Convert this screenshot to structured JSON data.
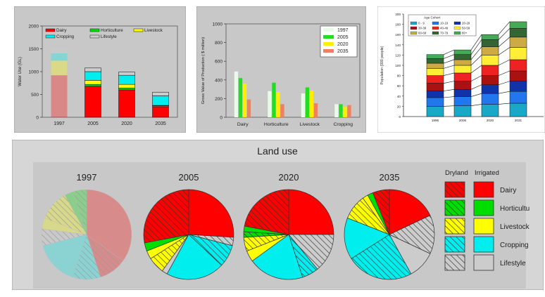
{
  "colors": {
    "dairy": "#ff0000",
    "horticulture": "#00dd00",
    "livestock": "#ffff00",
    "cropping": "#00eeee",
    "lifestyle": "#cccccc",
    "panel_bg": "#c8c8c8",
    "y1997": "#e8fbe8",
    "y2005": "#22dd22",
    "y2020": "#ffee00",
    "y2035": "#f08060"
  },
  "chart_data": [
    {
      "type": "bar",
      "stacked": true,
      "categories": [
        "1997",
        "2005",
        "2020",
        "2035"
      ],
      "ylabel": "Water Use (GL)",
      "ylim": [
        0,
        2000
      ],
      "yticks": [
        "0",
        "500",
        "1000",
        "1500",
        "2000"
      ],
      "legend_position": "top",
      "series": [
        {
          "name": "Dairy",
          "key": "dairy",
          "values": [
            920,
            680,
            600,
            230
          ]
        },
        {
          "name": "Horticulture",
          "key": "horticulture",
          "values": [
            0,
            40,
            40,
            20
          ]
        },
        {
          "name": "Livestock",
          "key": "livestock",
          "values": [
            320,
            90,
            80,
            10
          ]
        },
        {
          "name": "Cropping",
          "key": "cropping",
          "values": [
            160,
            190,
            200,
            210
          ]
        },
        {
          "name": "Lifestyle",
          "key": "lifestyle",
          "values": [
            100,
            80,
            70,
            80
          ]
        }
      ]
    },
    {
      "type": "bar",
      "categories": [
        "Dairy",
        "Horticulture",
        "Livestock",
        "Cropping"
      ],
      "ylabel": "Gross Value of Production ( $ million)",
      "ylim": [
        0,
        1000
      ],
      "yticks": [
        "0",
        "200",
        "400",
        "600",
        "800",
        "1000"
      ],
      "legend_position": "top-right",
      "series": [
        {
          "name": "1997",
          "key": "y1997",
          "values": [
            490,
            280,
            255,
            140
          ]
        },
        {
          "name": "2005",
          "key": "y2005",
          "values": [
            420,
            370,
            320,
            140
          ]
        },
        {
          "name": "2020",
          "key": "y2020",
          "values": [
            360,
            270,
            285,
            110
          ]
        },
        {
          "name": "2035",
          "key": "y2035",
          "values": [
            190,
            140,
            150,
            130
          ]
        }
      ]
    },
    {
      "type": "bar",
      "stacked": true,
      "categories": [
        "1996",
        "2006",
        "2020",
        "2031"
      ],
      "ylabel": "Population (000 people)",
      "ylim": [
        0,
        200
      ],
      "yticks": [
        "0",
        "20",
        "40",
        "60",
        "80",
        "100",
        "120",
        "140",
        "160",
        "180",
        "200"
      ],
      "legend_title": "Age Cohort",
      "series": [
        {
          "name": "0 - 9",
          "color": "#1aa8c8",
          "values": [
            20,
            21,
            24,
            26
          ]
        },
        {
          "name": "10-19",
          "color": "#2277ee",
          "values": [
            17,
            18,
            21,
            23
          ]
        },
        {
          "name": "20-29",
          "color": "#1133aa",
          "values": [
            13,
            14,
            17,
            20
          ]
        },
        {
          "name": "30-39",
          "color": "#aa1111",
          "values": [
            15,
            16,
            18,
            20
          ]
        },
        {
          "name": "40-49",
          "color": "#ee2222",
          "values": [
            15,
            16,
            20,
            22
          ]
        },
        {
          "name": "50-59",
          "color": "#ffee33",
          "values": [
            14,
            15,
            20,
            24
          ]
        },
        {
          "name": "60-69",
          "color": "#ccaa44",
          "values": [
            10,
            11,
            16,
            20
          ]
        },
        {
          "name": "70-79",
          "color": "#336633",
          "values": [
            9,
            10,
            14,
            17
          ]
        },
        {
          "name": "80+",
          "color": "#44aa55",
          "values": [
            8,
            9,
            10,
            13
          ]
        }
      ]
    },
    {
      "type": "pie",
      "title": "Land use",
      "pies": [
        {
          "label": "1997",
          "faded": true,
          "slices": [
            {
              "name": "Dairy",
              "kind": "irrigated",
              "value": 35
            },
            {
              "name": "Dairy",
              "kind": "dryland",
              "value": 10
            },
            {
              "name": "Cropping",
              "kind": "dryland",
              "value": 10
            },
            {
              "name": "Cropping",
              "kind": "irrigated",
              "value": 16
            },
            {
              "name": "Lifestyle",
              "kind": "dryland",
              "value": 6
            },
            {
              "name": "Livestock",
              "kind": "irrigated",
              "value": 4
            },
            {
              "name": "Livestock",
              "kind": "dryland",
              "value": 11
            },
            {
              "name": "Horticulture",
              "kind": "irrigated",
              "value": 3
            },
            {
              "name": "Horticulture",
              "kind": "dryland",
              "value": 5
            }
          ]
        },
        {
          "label": "2005",
          "slices": [
            {
              "name": "Dairy",
              "kind": "irrigated",
              "value": 26
            },
            {
              "name": "Lifestyle",
              "kind": "dryland",
              "value": 3
            },
            {
              "name": "Cropping",
              "kind": "dryland",
              "value": 8
            },
            {
              "name": "Cropping",
              "kind": "irrigated",
              "value": 21
            },
            {
              "name": "Lifestyle",
              "kind": "irrigated",
              "value": 2
            },
            {
              "name": "Livestock",
              "kind": "dryland",
              "value": 6
            },
            {
              "name": "Livestock",
              "kind": "irrigated",
              "value": 3
            },
            {
              "name": "Horticulture",
              "kind": "irrigated",
              "value": 3
            },
            {
              "name": "Dairy",
              "kind": "dryland",
              "value": 28
            }
          ]
        },
        {
          "label": "2020",
          "slices": [
            {
              "name": "Dairy",
              "kind": "irrigated",
              "value": 25
            },
            {
              "name": "Lifestyle",
              "kind": "dryland",
              "value": 14
            },
            {
              "name": "Cropping",
              "kind": "dryland",
              "value": 6
            },
            {
              "name": "Cropping",
              "kind": "irrigated",
              "value": 20
            },
            {
              "name": "Livestock",
              "kind": "irrigated",
              "value": 4
            },
            {
              "name": "Livestock",
              "kind": "dryland",
              "value": 5
            },
            {
              "name": "Horticulture",
              "kind": "dryland",
              "value": 2
            },
            {
              "name": "Horticulture",
              "kind": "irrigated",
              "value": 2
            },
            {
              "name": "Dairy",
              "kind": "dryland",
              "value": 22
            }
          ]
        },
        {
          "label": "2035",
          "slices": [
            {
              "name": "Dairy",
              "kind": "irrigated",
              "value": 18
            },
            {
              "name": "Lifestyle",
              "kind": "dryland",
              "value": 14
            },
            {
              "name": "Lifestyle",
              "kind": "irrigated",
              "value": 10
            },
            {
              "name": "Cropping",
              "kind": "dryland",
              "value": 24
            },
            {
              "name": "Cropping",
              "kind": "irrigated",
              "value": 15
            },
            {
              "name": "Livestock",
              "kind": "dryland",
              "value": 9
            },
            {
              "name": "Livestock",
              "kind": "irrigated",
              "value": 2
            },
            {
              "name": "Horticulture",
              "kind": "irrigated",
              "value": 2
            },
            {
              "name": "Dairy",
              "kind": "dryland",
              "value": 6
            }
          ]
        }
      ],
      "legend": {
        "dryland_label": "Dryland",
        "irrigated_label": "Irrigated",
        "rows": [
          {
            "name": "Dairy",
            "key": "dairy"
          },
          {
            "name": "Horticultu",
            "key": "horticulture"
          },
          {
            "name": "Livestock",
            "key": "livestock"
          },
          {
            "name": "Cropping",
            "key": "cropping"
          },
          {
            "name": "Lifestyle",
            "key": "lifestyle"
          }
        ]
      }
    }
  ]
}
